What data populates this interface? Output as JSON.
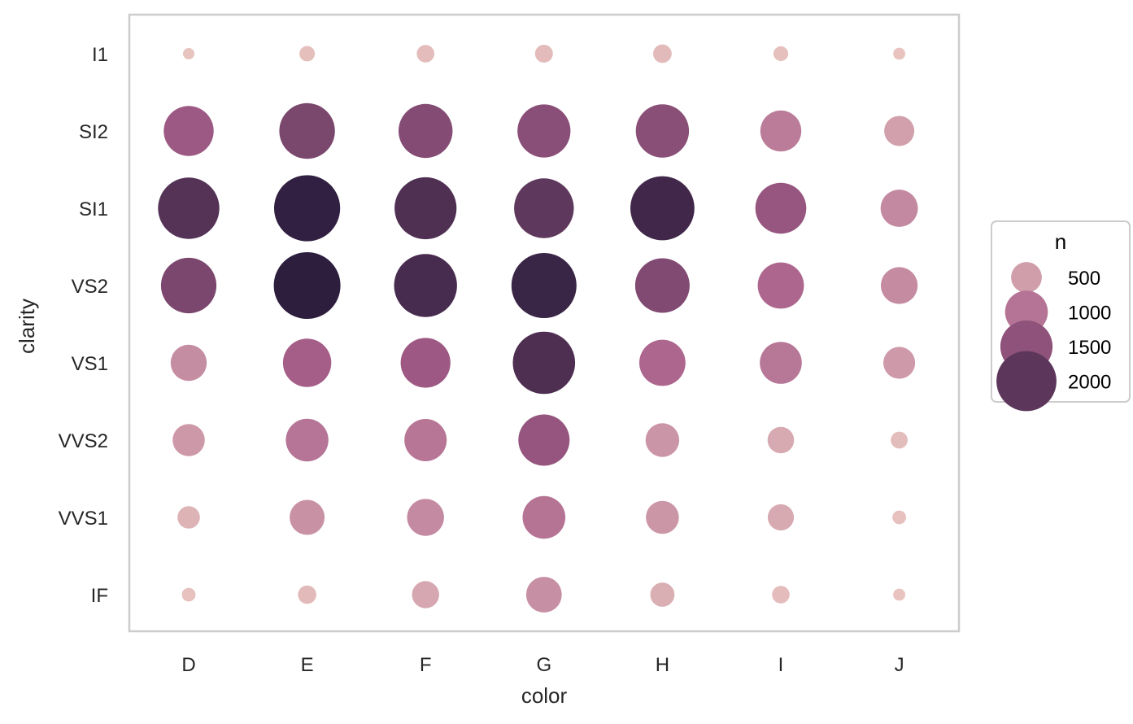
{
  "chart_data": {
    "type": "scatter",
    "xlabel": "color",
    "ylabel": "clarity",
    "x_categories": [
      "D",
      "E",
      "F",
      "G",
      "H",
      "I",
      "J"
    ],
    "y_categories": [
      "I1",
      "SI2",
      "SI1",
      "VS2",
      "VS1",
      "VVS2",
      "VVS1",
      "IF"
    ],
    "size_variable": "n",
    "hue_variable": "n",
    "n_values": [
      [
        42,
        102,
        143,
        150,
        162,
        92,
        50
      ],
      [
        1370,
        1713,
        1609,
        1548,
        1563,
        912,
        479
      ],
      [
        2083,
        2426,
        2131,
        1976,
        2275,
        1424,
        750
      ],
      [
        1697,
        2470,
        2201,
        2347,
        1643,
        1169,
        731
      ],
      [
        705,
        1281,
        1364,
        2148,
        1169,
        962,
        542
      ],
      [
        553,
        991,
        975,
        1443,
        608,
        365,
        131
      ],
      [
        252,
        656,
        734,
        999,
        585,
        355,
        74
      ],
      [
        73,
        158,
        385,
        681,
        299,
        143,
        51
      ]
    ],
    "legend": {
      "title": "n",
      "placement": "right",
      "entries": [
        "500",
        "1000",
        "1500",
        "2000"
      ],
      "entry_values": [
        500,
        1000,
        1500,
        2000
      ]
    },
    "grid": false,
    "colors": {
      "low": "#e8c4bf",
      "mid": "#a85f8a",
      "high": "#2d1e3e",
      "frame": "#cccccc"
    }
  }
}
